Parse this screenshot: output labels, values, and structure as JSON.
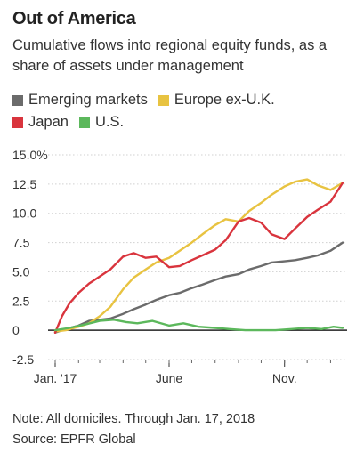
{
  "header": {
    "title": "Out of America",
    "subtitle": "Cumulative flows into regional equity funds, as a share of assets under management"
  },
  "legend": [
    {
      "label": "Emerging markets",
      "color": "#6b6b6b"
    },
    {
      "label": "Europe ex-U.K.",
      "color": "#e8c341"
    },
    {
      "label": "Japan",
      "color": "#d9343d"
    },
    {
      "label": "U.S.",
      "color": "#5cb85c"
    }
  ],
  "chart_data": {
    "type": "line",
    "ylim": [
      -2.5,
      15.0
    ],
    "yticks": [
      {
        "value": 15.0,
        "label": "15.0%"
      },
      {
        "value": 12.5,
        "label": "12.5"
      },
      {
        "value": 10.0,
        "label": "10.0"
      },
      {
        "value": 7.5,
        "label": "7.5"
      },
      {
        "value": 5.0,
        "label": "5.0"
      },
      {
        "value": 2.5,
        "label": "2.5"
      },
      {
        "value": 0,
        "label": "0"
      },
      {
        "value": -2.5,
        "label": "-2.5"
      }
    ],
    "xlim": [
      "2017-01-01",
      "2018-01-17"
    ],
    "xticks": [
      {
        "date": "2017-01-01",
        "label": "Jan. '17"
      },
      {
        "date": "2017-06-01",
        "label": "June"
      },
      {
        "date": "2017-11-01",
        "label": "Nov."
      }
    ],
    "series": [
      {
        "name": "Emerging markets",
        "color": "#6b6b6b",
        "x": [
          "2017-01-01",
          "2017-01-15",
          "2017-02-01",
          "2017-02-15",
          "2017-03-01",
          "2017-03-15",
          "2017-04-01",
          "2017-04-15",
          "2017-05-01",
          "2017-05-15",
          "2017-06-01",
          "2017-06-15",
          "2017-07-01",
          "2017-07-15",
          "2017-08-01",
          "2017-08-15",
          "2017-09-01",
          "2017-09-15",
          "2017-10-01",
          "2017-10-15",
          "2017-11-01",
          "2017-11-15",
          "2017-12-01",
          "2017-12-15",
          "2018-01-01",
          "2018-01-17"
        ],
        "y": [
          -0.2,
          0.1,
          0.4,
          0.8,
          0.9,
          1.0,
          1.4,
          1.8,
          2.2,
          2.6,
          3.0,
          3.2,
          3.6,
          3.9,
          4.3,
          4.6,
          4.8,
          5.2,
          5.5,
          5.8,
          5.9,
          6.0,
          6.2,
          6.4,
          6.8,
          7.5
        ]
      },
      {
        "name": "Europe ex-U.K.",
        "color": "#e8c341",
        "x": [
          "2017-01-01",
          "2017-01-15",
          "2017-02-01",
          "2017-02-15",
          "2017-03-01",
          "2017-03-15",
          "2017-04-01",
          "2017-04-15",
          "2017-05-01",
          "2017-05-15",
          "2017-06-01",
          "2017-06-15",
          "2017-07-01",
          "2017-07-15",
          "2017-08-01",
          "2017-08-15",
          "2017-09-01",
          "2017-09-15",
          "2017-10-01",
          "2017-10-15",
          "2017-11-01",
          "2017-11-15",
          "2017-12-01",
          "2017-12-15",
          "2018-01-01",
          "2018-01-17"
        ],
        "y": [
          -0.1,
          0.0,
          0.3,
          0.6,
          1.2,
          2.0,
          3.5,
          4.5,
          5.2,
          5.8,
          6.2,
          6.8,
          7.5,
          8.2,
          9.0,
          9.5,
          9.3,
          10.2,
          10.9,
          11.6,
          12.3,
          12.7,
          12.9,
          12.4,
          12.0,
          12.6
        ]
      },
      {
        "name": "Japan",
        "color": "#d9343d",
        "x": [
          "2017-01-01",
          "2017-01-10",
          "2017-01-20",
          "2017-02-01",
          "2017-02-15",
          "2017-03-01",
          "2017-03-15",
          "2017-04-01",
          "2017-04-15",
          "2017-05-01",
          "2017-05-15",
          "2017-06-01",
          "2017-06-15",
          "2017-07-01",
          "2017-07-15",
          "2017-08-01",
          "2017-08-15",
          "2017-09-01",
          "2017-09-15",
          "2017-10-01",
          "2017-10-15",
          "2017-11-01",
          "2017-11-15",
          "2017-12-01",
          "2017-12-15",
          "2018-01-01",
          "2018-01-17"
        ],
        "y": [
          -0.2,
          1.2,
          2.3,
          3.2,
          4.0,
          4.6,
          5.2,
          6.3,
          6.6,
          6.2,
          6.3,
          5.4,
          5.5,
          6.0,
          6.4,
          6.9,
          7.7,
          9.3,
          9.6,
          9.2,
          8.2,
          7.8,
          8.7,
          9.7,
          10.3,
          11.0,
          12.6
        ]
      },
      {
        "name": "U.S.",
        "color": "#5cb85c",
        "x": [
          "2017-01-01",
          "2017-01-20",
          "2017-02-10",
          "2017-03-01",
          "2017-03-20",
          "2017-04-05",
          "2017-04-20",
          "2017-05-10",
          "2017-06-01",
          "2017-06-20",
          "2017-07-10",
          "2017-08-01",
          "2017-08-20",
          "2017-09-10",
          "2017-10-01",
          "2017-10-20",
          "2017-11-10",
          "2017-12-01",
          "2017-12-20",
          "2018-01-05",
          "2018-01-17"
        ],
        "y": [
          0.0,
          0.2,
          0.5,
          0.8,
          0.9,
          0.7,
          0.6,
          0.8,
          0.4,
          0.6,
          0.3,
          0.2,
          0.1,
          0.0,
          0.0,
          0.0,
          0.1,
          0.2,
          0.1,
          0.3,
          0.2
        ]
      }
    ],
    "grid": true,
    "legend_position": "top"
  },
  "footer": {
    "note": "Note: All domiciles. Through Jan. 17, 2018",
    "source": "Source: EPFR Global"
  }
}
